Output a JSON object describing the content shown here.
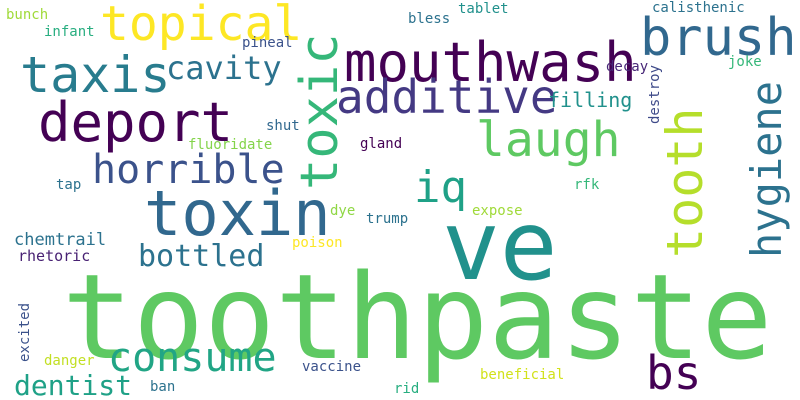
{
  "words": [
    {
      "text": "toothpaste",
      "color": "#5ec962"
    },
    {
      "text": "ve",
      "color": "#21918c"
    },
    {
      "text": "mouthwash",
      "color": "#440154"
    },
    {
      "text": "toxin",
      "color": "#31688e"
    },
    {
      "text": "toxic",
      "color": "#35b779"
    },
    {
      "text": "additive",
      "color": "#443983"
    },
    {
      "text": "topical",
      "color": "#fde725"
    },
    {
      "text": "brush",
      "color": "#31688e"
    },
    {
      "text": "taxis",
      "color": "#287c8e"
    },
    {
      "text": "deport",
      "color": "#440154"
    },
    {
      "text": "laugh",
      "color": "#5ec962"
    },
    {
      "text": "horrible",
      "color": "#3b528b"
    },
    {
      "text": "consume",
      "color": "#21a585"
    },
    {
      "text": "tooth",
      "color": "#b5de2b"
    },
    {
      "text": "hygiene",
      "color": "#2c728e"
    },
    {
      "text": "bs",
      "color": "#440154"
    },
    {
      "text": "iq",
      "color": "#1fa187"
    },
    {
      "text": "cavity",
      "color": "#2c728e"
    },
    {
      "text": "bottled",
      "color": "#2c728e"
    },
    {
      "text": "dentist",
      "color": "#1fa187"
    },
    {
      "text": "filling",
      "color": "#21918c"
    },
    {
      "text": "chemtrail",
      "color": "#2c728e"
    },
    {
      "text": "rhetoric",
      "color": "#482173"
    },
    {
      "text": "bunch",
      "color": "#a0da39"
    },
    {
      "text": "infant",
      "color": "#28ae80"
    },
    {
      "text": "pineal",
      "color": "#3b528b"
    },
    {
      "text": "bless",
      "color": "#2c728e"
    },
    {
      "text": "tablet",
      "color": "#21918c"
    },
    {
      "text": "calisthenic",
      "color": "#2c728e"
    },
    {
      "text": "decay",
      "color": "#482878"
    },
    {
      "text": "joke",
      "color": "#35b779"
    },
    {
      "text": "destroy",
      "color": "#3e4a89"
    },
    {
      "text": "shut",
      "color": "#31688e"
    },
    {
      "text": "fluoridate",
      "color": "#84d44b"
    },
    {
      "text": "gland",
      "color": "#440154"
    },
    {
      "text": "tap",
      "color": "#2c728e"
    },
    {
      "text": "rfk",
      "color": "#35b779"
    },
    {
      "text": "dye",
      "color": "#8fd744"
    },
    {
      "text": "trump",
      "color": "#2c728e"
    },
    {
      "text": "expose",
      "color": "#a0da39"
    },
    {
      "text": "poison",
      "color": "#fde725"
    },
    {
      "text": "excited",
      "color": "#3b528b"
    },
    {
      "text": "danger",
      "color": "#c2df23"
    },
    {
      "text": "vaccine",
      "color": "#3b528b"
    },
    {
      "text": "ban",
      "color": "#2c728e"
    },
    {
      "text": "rid",
      "color": "#28ae80"
    },
    {
      "text": "beneficial",
      "color": "#d2e21b"
    }
  ]
}
